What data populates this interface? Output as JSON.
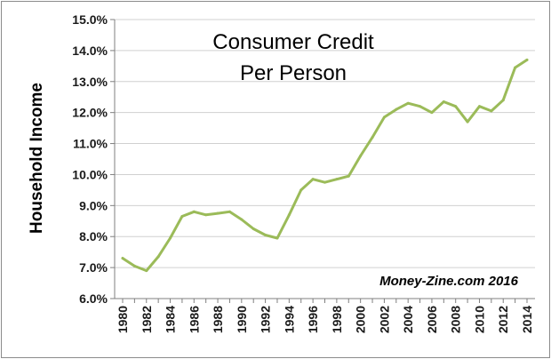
{
  "chart_data": {
    "type": "line",
    "title_lines": [
      "Consumer Credit",
      "Per Person"
    ],
    "xlabel": "",
    "ylabel": "Household Income",
    "annotation": "Money-Zine.com 2016",
    "xlim": [
      1980,
      2014
    ],
    "ylim": [
      6.0,
      15.0
    ],
    "y_ticks": [
      6.0,
      7.0,
      8.0,
      9.0,
      10.0,
      11.0,
      12.0,
      13.0,
      14.0,
      15.0
    ],
    "y_tick_labels": [
      "6.0%",
      "7.0%",
      "8.0%",
      "9.0%",
      "10.0%",
      "11.0%",
      "12.0%",
      "13.0%",
      "14.0%",
      "15.0%"
    ],
    "x_ticks": [
      1980,
      1982,
      1984,
      1986,
      1988,
      1990,
      1992,
      1994,
      1996,
      1998,
      2000,
      2002,
      2004,
      2006,
      2008,
      2010,
      2012,
      2014
    ],
    "x_tick_labels": [
      "1980",
      "1982",
      "1984",
      "1986",
      "1988",
      "1990",
      "1992",
      "1994",
      "1996",
      "1998",
      "2000",
      "2002",
      "2004",
      "2006",
      "2008",
      "2010",
      "2012",
      "2014"
    ],
    "grid": "horizontal",
    "line_color": "#9bbb59",
    "series": [
      {
        "x": [
          1980,
          1981,
          1982,
          1983,
          1984,
          1985,
          1986,
          1987,
          1988,
          1989,
          1990,
          1991,
          1992,
          1993,
          1994,
          1995,
          1996,
          1997,
          1998,
          1999,
          2000,
          2001,
          2002,
          2003,
          2004,
          2005,
          2006,
          2007,
          2008,
          2009,
          2010,
          2011,
          2012,
          2013,
          2014
        ],
        "values": [
          7.3,
          7.05,
          6.9,
          7.35,
          7.95,
          8.65,
          8.8,
          8.7,
          8.75,
          8.8,
          8.55,
          8.25,
          8.05,
          7.95,
          8.7,
          9.5,
          9.85,
          9.75,
          9.85,
          9.95,
          10.6,
          11.2,
          11.85,
          12.1,
          12.3,
          12.2,
          12.0,
          12.35,
          12.2,
          11.7,
          12.2,
          12.05,
          12.4,
          13.45,
          13.7
        ]
      }
    ]
  }
}
